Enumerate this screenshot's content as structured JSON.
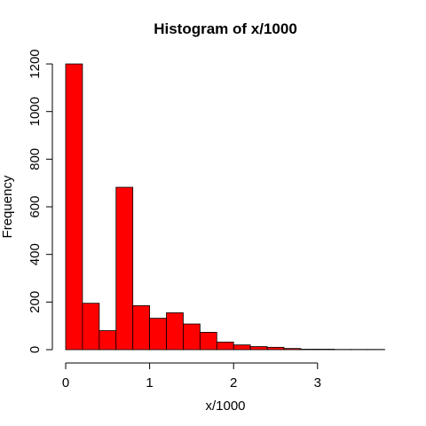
{
  "chart_data": {
    "type": "bar",
    "title": "Histogram of x/1000",
    "xlabel": "x/1000",
    "ylabel": "Frequency",
    "bar_color": "#ff0000",
    "bar_edge_color": "#000000",
    "bin_width": 0.2,
    "bins": [
      {
        "start": 0.0,
        "end": 0.2,
        "count": 1200
      },
      {
        "start": 0.2,
        "end": 0.4,
        "count": 195
      },
      {
        "start": 0.4,
        "end": 0.6,
        "count": 80
      },
      {
        "start": 0.6,
        "end": 0.8,
        "count": 682
      },
      {
        "start": 0.8,
        "end": 1.0,
        "count": 185
      },
      {
        "start": 1.0,
        "end": 1.2,
        "count": 132
      },
      {
        "start": 1.2,
        "end": 1.4,
        "count": 155
      },
      {
        "start": 1.4,
        "end": 1.6,
        "count": 108
      },
      {
        "start": 1.6,
        "end": 1.8,
        "count": 73
      },
      {
        "start": 1.8,
        "end": 2.0,
        "count": 32
      },
      {
        "start": 2.0,
        "end": 2.2,
        "count": 20
      },
      {
        "start": 2.2,
        "end": 2.4,
        "count": 13
      },
      {
        "start": 2.4,
        "end": 2.6,
        "count": 10
      },
      {
        "start": 2.6,
        "end": 2.8,
        "count": 5
      },
      {
        "start": 2.8,
        "end": 3.0,
        "count": 2
      },
      {
        "start": 3.0,
        "end": 3.2,
        "count": 2
      },
      {
        "start": 3.2,
        "end": 3.4,
        "count": 1
      },
      {
        "start": 3.4,
        "end": 3.6,
        "count": 1
      },
      {
        "start": 3.6,
        "end": 3.8,
        "count": 1
      }
    ],
    "xlim": [
      0,
      3.8
    ],
    "ylim": [
      0,
      1200
    ],
    "x_ticks": [
      0,
      1,
      2,
      3
    ],
    "x_tick_labels": [
      "0",
      "1",
      "2",
      "3"
    ],
    "y_ticks": [
      0,
      200,
      400,
      600,
      800,
      1000,
      1200
    ],
    "y_tick_labels": [
      "0",
      "200",
      "400",
      "600",
      "800",
      "1000",
      "1200"
    ],
    "grid": false,
    "legend": "none"
  }
}
